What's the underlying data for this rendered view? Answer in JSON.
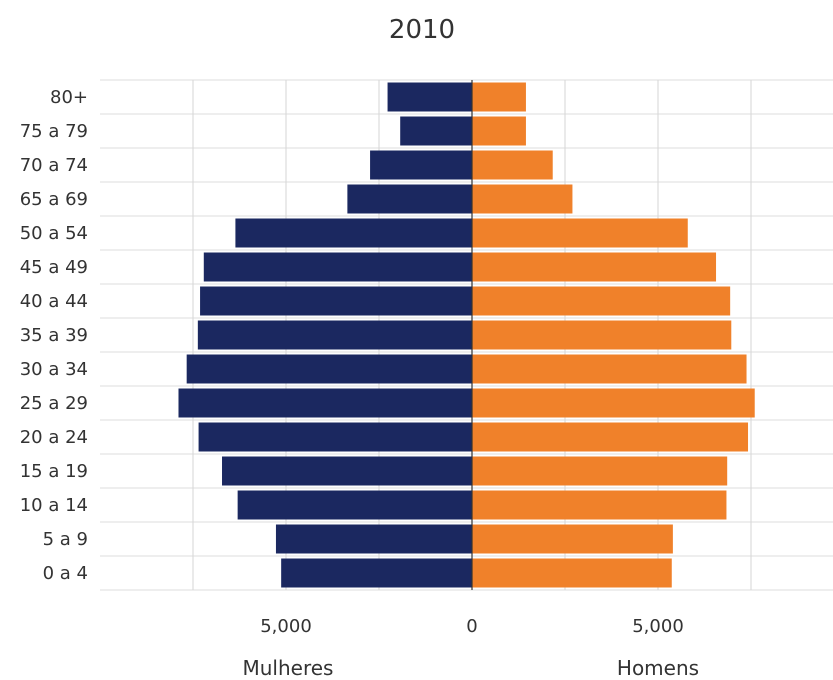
{
  "chart_data": {
    "type": "bar",
    "title": "2010",
    "categories": [
      "80+",
      "75 a 79",
      "70 a 74",
      "65 a 69",
      "50 a 54",
      "45 a 49",
      "40 a 44",
      "35 a 39",
      "30 a 34",
      "25 a 29",
      "20 a 24",
      "15 a 19",
      "10 a 14",
      "5 a 9",
      "0 a 4"
    ],
    "series": [
      {
        "name": "Mulheres",
        "color": "#1b2860",
        "values": [
          2270,
          1930,
          2740,
          3350,
          6360,
          7210,
          7310,
          7370,
          7670,
          7890,
          7350,
          6720,
          6300,
          5270,
          5130
        ]
      },
      {
        "name": "Homens",
        "color": "#f0812a",
        "values": [
          1450,
          1450,
          2170,
          2700,
          5800,
          6560,
          6940,
          6970,
          7380,
          7600,
          7420,
          6860,
          6840,
          5400,
          5370
        ]
      }
    ],
    "xticks": [
      {
        "label": "5,000",
        "value": -5000
      },
      {
        "label": "0",
        "value": 0
      },
      {
        "label": "5,000",
        "value": 5000
      }
    ],
    "xlabel_left": "Mulheres",
    "xlabel_right": "Homens",
    "xlim": [
      -8700,
      8700
    ],
    "grid": true,
    "legend": "none"
  }
}
